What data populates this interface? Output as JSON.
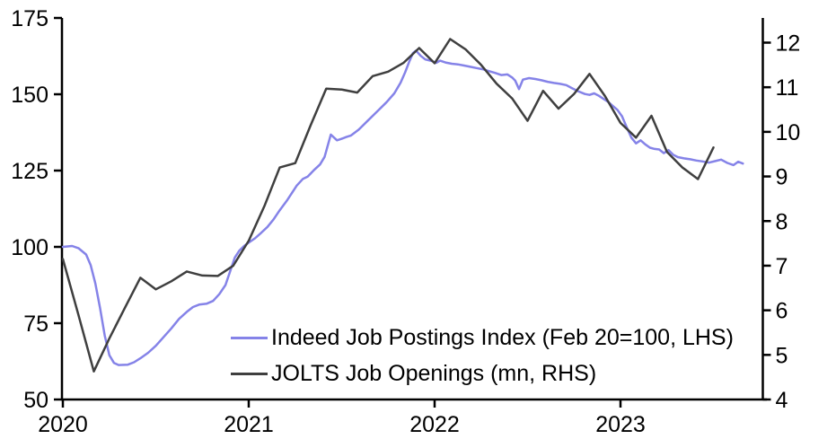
{
  "chart_data": {
    "type": "line",
    "title": "",
    "x_axis": {
      "tick_labels": [
        "2020",
        "2021",
        "2022",
        "2023"
      ],
      "tick_month_positions": [
        0,
        12,
        24,
        36
      ]
    },
    "left_axis": {
      "ticks": [
        50,
        75,
        100,
        125,
        150,
        175
      ],
      "range": [
        50,
        175
      ],
      "side": "left"
    },
    "right_axis": {
      "ticks": [
        4,
        5,
        6,
        7,
        8,
        9,
        10,
        11,
        12
      ],
      "range": [
        4,
        12.5
      ],
      "side": "right"
    },
    "grid": false,
    "legend_position": "lower-center",
    "series": [
      {
        "name": "Indeed Job Postings Index (Feb 20=100, LHS)",
        "axis": "left",
        "color": "#8583e8",
        "points": [
          [
            0,
            100
          ],
          [
            0.6,
            100.3
          ],
          [
            1.0,
            99.6
          ],
          [
            1.5,
            97.5
          ],
          [
            1.8,
            94
          ],
          [
            2.1,
            88
          ],
          [
            2.4,
            80
          ],
          [
            2.7,
            71
          ],
          [
            3.0,
            64.5
          ],
          [
            3.3,
            62
          ],
          [
            3.6,
            61.3
          ],
          [
            4.2,
            61.4
          ],
          [
            4.6,
            62.2
          ],
          [
            5.0,
            63.5
          ],
          [
            5.5,
            65.3
          ],
          [
            6.0,
            67.6
          ],
          [
            6.5,
            70.4
          ],
          [
            7.0,
            73.3
          ],
          [
            7.5,
            76.4
          ],
          [
            8.0,
            78.7
          ],
          [
            8.4,
            80.3
          ],
          [
            8.8,
            81.1
          ],
          [
            9.3,
            81.4
          ],
          [
            9.7,
            82.3
          ],
          [
            10.1,
            84.5
          ],
          [
            10.5,
            87.5
          ],
          [
            10.8,
            92
          ],
          [
            11.1,
            96.5
          ],
          [
            11.4,
            98.8
          ],
          [
            11.7,
            100.3
          ],
          [
            12.0,
            101.4
          ],
          [
            12.4,
            102.8
          ],
          [
            12.8,
            104.6
          ],
          [
            13.2,
            106.5
          ],
          [
            13.6,
            109
          ],
          [
            14.0,
            112
          ],
          [
            14.5,
            115.4
          ],
          [
            15.1,
            120.1
          ],
          [
            15.5,
            122.3
          ],
          [
            15.8,
            123
          ],
          [
            16.2,
            125.1
          ],
          [
            16.6,
            127
          ],
          [
            16.9,
            129.5
          ],
          [
            17.3,
            136.8
          ],
          [
            17.7,
            134.9
          ],
          [
            18.0,
            135.4
          ],
          [
            18.3,
            136
          ],
          [
            18.6,
            136.5
          ],
          [
            19.1,
            138.4
          ],
          [
            19.7,
            141.4
          ],
          [
            20.3,
            144.4
          ],
          [
            20.9,
            147.4
          ],
          [
            21.4,
            150.3
          ],
          [
            21.8,
            153.8
          ],
          [
            22.1,
            157.2
          ],
          [
            22.35,
            160.5
          ],
          [
            22.6,
            163.5
          ],
          [
            22.8,
            164.3
          ],
          [
            23.1,
            162.6
          ],
          [
            23.4,
            161.4
          ],
          [
            23.8,
            160.9
          ],
          [
            24.1,
            160.3
          ],
          [
            24.35,
            161.0
          ],
          [
            24.7,
            160.4
          ],
          [
            25.1,
            160.0
          ],
          [
            25.5,
            159.8
          ],
          [
            25.9,
            159.4
          ],
          [
            26.3,
            159.0
          ],
          [
            26.7,
            158.6
          ],
          [
            27.1,
            158.2
          ],
          [
            27.5,
            157.6
          ],
          [
            27.9,
            157.0
          ],
          [
            28.3,
            156.3
          ],
          [
            28.7,
            156.5
          ],
          [
            29.0,
            155.5
          ],
          [
            29.2,
            154.5
          ],
          [
            29.45,
            151.7
          ],
          [
            29.7,
            154.8
          ],
          [
            30.1,
            155.3
          ],
          [
            30.5,
            155.0
          ],
          [
            30.9,
            154.6
          ],
          [
            31.3,
            154.1
          ],
          [
            31.7,
            153.7
          ],
          [
            32.1,
            153.4
          ],
          [
            32.5,
            153.0
          ],
          [
            32.9,
            151.9
          ],
          [
            33.3,
            150.9
          ],
          [
            33.7,
            150.1
          ],
          [
            34.0,
            149.8
          ],
          [
            34.3,
            150.3
          ],
          [
            34.6,
            149.5
          ],
          [
            34.9,
            148.5
          ],
          [
            35.2,
            147.5
          ],
          [
            35.5,
            146.2
          ],
          [
            35.8,
            144.9
          ],
          [
            36.1,
            142.8
          ],
          [
            36.4,
            139.2
          ],
          [
            36.7,
            135.8
          ],
          [
            37.0,
            133.9
          ],
          [
            37.3,
            134.9
          ],
          [
            37.6,
            133.6
          ],
          [
            37.9,
            132.5
          ],
          [
            38.2,
            132.1
          ],
          [
            38.5,
            131.9
          ],
          [
            38.8,
            130.7
          ],
          [
            39.1,
            131.7
          ],
          [
            39.4,
            130.2
          ],
          [
            39.7,
            129.4
          ],
          [
            40.1,
            129.0
          ],
          [
            40.5,
            128.7
          ],
          [
            40.9,
            128.3
          ],
          [
            41.3,
            128.0
          ],
          [
            41.7,
            127.6
          ],
          [
            42.1,
            128.1
          ],
          [
            42.5,
            128.6
          ],
          [
            42.9,
            127.5
          ],
          [
            43.3,
            126.8
          ],
          [
            43.6,
            127.9
          ],
          [
            43.9,
            127.3
          ]
        ]
      },
      {
        "name": "JOLTS Job Openings (mn, RHS)",
        "axis": "right",
        "color": "#3f3f3f",
        "points": [
          [
            0,
            7.15
          ],
          [
            1,
            5.9
          ],
          [
            2,
            4.63
          ],
          [
            3,
            5.37
          ],
          [
            4,
            6.05
          ],
          [
            5,
            6.73
          ],
          [
            6,
            6.47
          ],
          [
            7,
            6.65
          ],
          [
            8,
            6.87
          ],
          [
            9,
            6.78
          ],
          [
            10,
            6.77
          ],
          [
            11,
            7.0
          ],
          [
            12,
            7.56
          ],
          [
            13,
            8.33
          ],
          [
            14,
            9.2
          ],
          [
            15,
            9.3
          ],
          [
            16,
            10.15
          ],
          [
            17,
            10.97
          ],
          [
            18,
            10.95
          ],
          [
            19,
            10.88
          ],
          [
            20,
            11.25
          ],
          [
            21,
            11.35
          ],
          [
            22,
            11.55
          ],
          [
            23,
            11.88
          ],
          [
            24,
            11.54
          ],
          [
            25,
            12.08
          ],
          [
            26,
            11.85
          ],
          [
            27,
            11.5
          ],
          [
            28,
            11.08
          ],
          [
            29,
            10.75
          ],
          [
            30,
            10.25
          ],
          [
            31,
            10.92
          ],
          [
            32,
            10.52
          ],
          [
            33,
            10.85
          ],
          [
            34,
            11.3
          ],
          [
            35,
            10.8
          ],
          [
            36,
            10.2
          ],
          [
            37,
            9.87
          ],
          [
            38,
            10.36
          ],
          [
            39,
            9.55
          ],
          [
            40,
            9.2
          ],
          [
            41,
            8.94
          ],
          [
            42,
            9.65
          ]
        ]
      }
    ]
  }
}
